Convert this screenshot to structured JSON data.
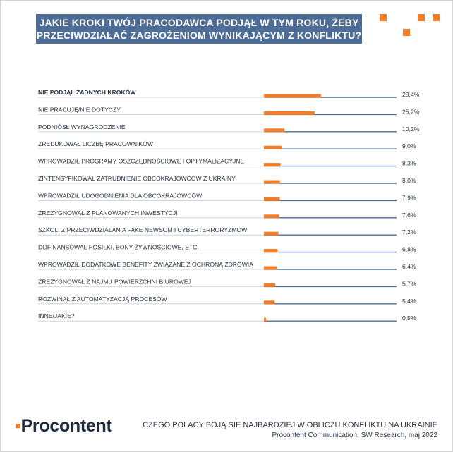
{
  "title": {
    "line1": "JAKIE KROKI TWÓJ PRACODAWCA PODJĄŁ W TYM ROKU, ŻEBY",
    "line2": "PRZECIWDZIAŁAĆ ZAGROŻENIOM WYNIKAJĄCYM Z KONFLIKTU?"
  },
  "colors": {
    "accent": "#f07d2a",
    "line": "#4e6d96",
    "title_bg": "#4e6d96"
  },
  "chart_data": {
    "type": "bar",
    "orientation": "horizontal",
    "title": "JAKIE KROKI TWÓJ PRACODAWCA PODJĄŁ W TYM ROKU, ŻEBY PRZECIWDZIAŁAĆ ZAGROŻENIOM WYNIKAJĄCYM Z KONFLIKTU?",
    "unit": "%",
    "xlim": [
      0,
      100
    ],
    "categories": [
      "NIE PODJĄŁ ŻADNYCH KROKÓW",
      "NIE PRACUJĘ/NIE DOTYCZY",
      "PODNIÓSŁ WYNAGRODZENIE",
      "ZREDUKOWAŁ LICZBĘ PRACOWNIKÓW",
      "WPROWADZIŁ PROGRAMY OSZCZĘDNOŚCIOWE I OPTYMALIZACYJNE",
      "ZINTENSYFIKOWAŁ ZATRUDNIENIE OBCOKRAJOWCÓW Z UKRAINY",
      "WPROWADZIŁ UDOGODNIENIA DLA OBCOKRAJOWCÓW",
      "ZREZYGNOWAŁ Z PLANOWANYCH INWESTYCJI",
      "SZKOLI Z PRZECIWDZIAŁANIA FAKE NEWSOM I CYBERTERRORYZMOWI",
      "DOFINANSOWAŁ POSIŁKI, BONY ŻYWNOŚCIOWE, ETC.",
      "WPROWADZIŁ DODATKOWE BENEFITY ZWIĄZANE Z OCHRONĄ ZDROWIA",
      "ZREZYGNOWAŁ Z NAJMU POWIERZCHNI BIUROWEJ",
      "ROZWINĄŁ Z AUTOMATYZACJĄ PROCESÓW",
      "INNE/JAKIE?"
    ],
    "values": [
      28.4,
      25.2,
      10.2,
      9.0,
      8.3,
      8.0,
      7.9,
      7.6,
      7.2,
      6.8,
      6.4,
      5.7,
      5.4,
      0.5
    ],
    "value_labels": [
      "28,4%",
      "25,2%",
      "10,2%",
      "9,0%",
      "8,3%",
      "8,0%",
      "7,9%",
      "7,6%",
      "7,2%",
      "6,8%",
      "6,4%",
      "5,7%",
      "5,4%",
      "0,5%"
    ]
  },
  "footer": {
    "brand": "Procontent",
    "title": "CZEGO POLACY BOJĄ SIE NAJBARDZIEJ W OBLICZU KONFLIKTU NA UKRAINIE",
    "source": "Procontent Communication, SW Research, maj 2022"
  }
}
